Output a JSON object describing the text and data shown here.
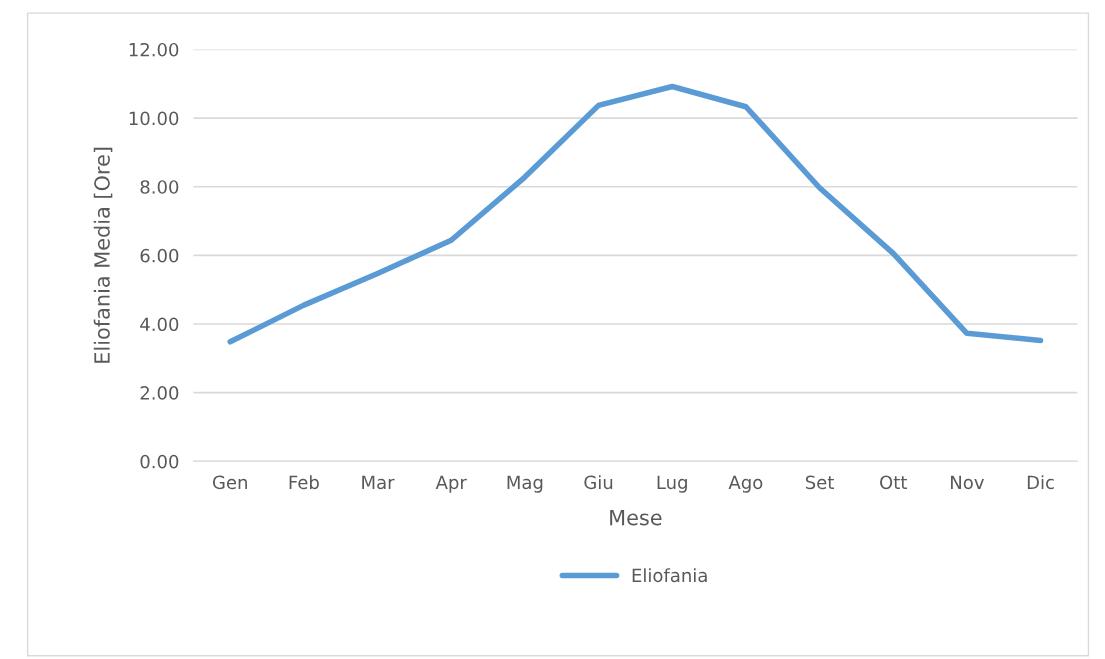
{
  "chart_data": {
    "type": "line",
    "xlabel": "Mese",
    "ylabel": "Eliofania Media [Ore]",
    "categories": [
      "Gen",
      "Feb",
      "Mar",
      "Apr",
      "Mag",
      "Giu",
      "Lug",
      "Ago",
      "Set",
      "Ott",
      "Nov",
      "Dic"
    ],
    "series": [
      {
        "name": "Eliofania",
        "color": "#5b9bd5",
        "values": [
          3.48,
          4.55,
          5.47,
          6.44,
          8.28,
          10.37,
          10.92,
          10.33,
          7.97,
          6.06,
          3.73,
          3.52
        ]
      }
    ],
    "ylim": [
      0,
      12
    ],
    "yticks": [
      {
        "value": 0,
        "label": "0.00"
      },
      {
        "value": 2,
        "label": "2.00"
      },
      {
        "value": 4,
        "label": "4.00"
      },
      {
        "value": 6,
        "label": "6.00"
      },
      {
        "value": 8,
        "label": "8.00"
      },
      {
        "value": 10,
        "label": "10.00"
      },
      {
        "value": 12,
        "label": "12.00"
      }
    ],
    "grid": "y",
    "legend": "bottom",
    "marker": "none",
    "line_style": "solid"
  }
}
